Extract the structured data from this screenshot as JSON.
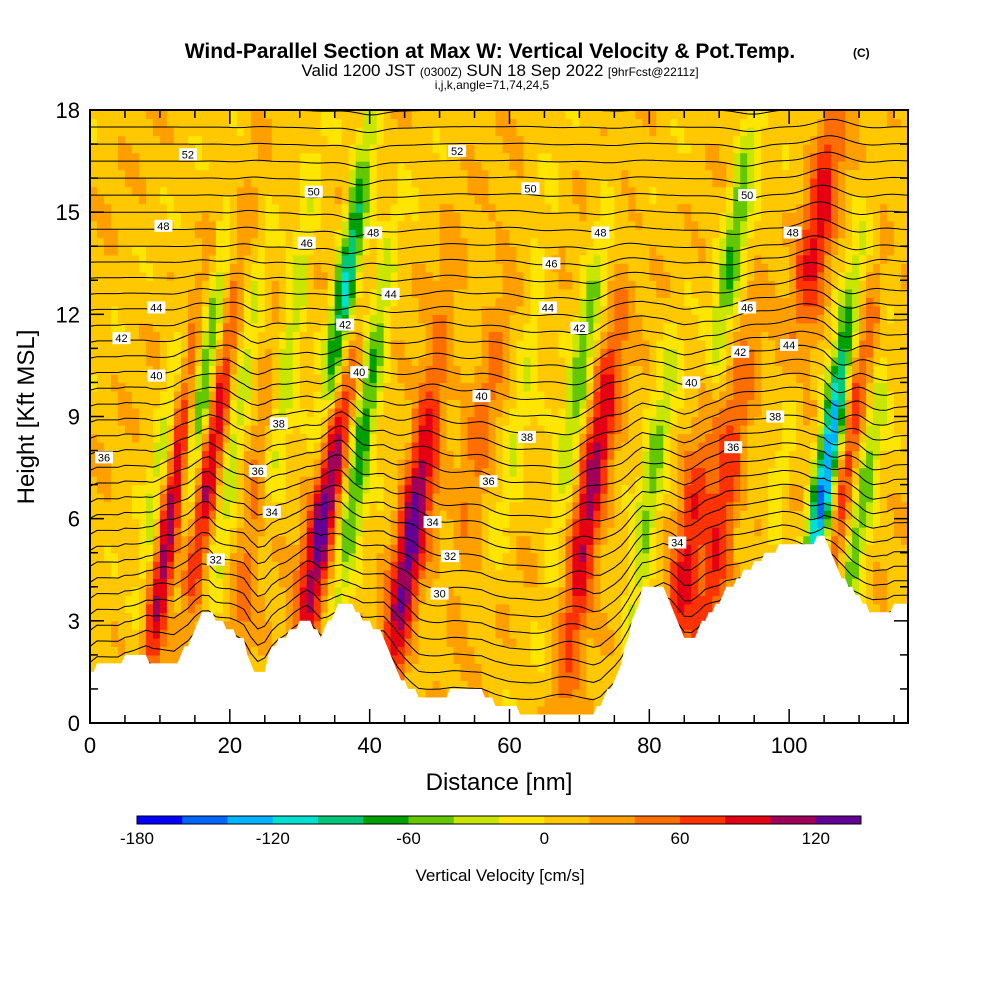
{
  "chart_data": {
    "type": "heatmap",
    "title": "Wind-Parallel Section at Max W: Vertical Velocity & Pot.Temp.",
    "title_mark": "(C)",
    "subtitle": {
      "valid_prefix": "Valid 1200 JST",
      "utc": "(0300Z)",
      "date": "SUN 18 Sep 2022",
      "forecast": "[9hrFcst@2211z]"
    },
    "indices": "i,j,k,angle=71,74,24,5",
    "xlabel": "Distance [nm]",
    "ylabel": "Height [Kft MSL]",
    "xlim": [
      0,
      117
    ],
    "ylim": [
      0,
      18
    ],
    "x_ticks": [
      "0",
      "20",
      "40",
      "60",
      "80",
      "100"
    ],
    "y_ticks": [
      "0",
      "3",
      "6",
      "9",
      "12",
      "15",
      "18"
    ],
    "colorbar": {
      "label": "Vertical Velocity [cm/s]",
      "tick_labels": [
        "-180",
        "-120",
        "-60",
        "0",
        "60",
        "120"
      ],
      "range": [
        -180,
        140
      ],
      "step": 20,
      "colors": [
        "#0000ff",
        "#0066ff",
        "#00b4ff",
        "#00e1d2",
        "#00c878",
        "#00a000",
        "#64c800",
        "#c8e600",
        "#ffe600",
        "#ffc800",
        "#ffa000",
        "#ff6e00",
        "#ff3200",
        "#e60014",
        "#a0005a",
        "#640096"
      ]
    },
    "terrain": [
      [
        0,
        1.4
      ],
      [
        1,
        1.7
      ],
      [
        4,
        1.7
      ],
      [
        5,
        1.9
      ],
      [
        8,
        1.9
      ],
      [
        9,
        1.7
      ],
      [
        12,
        1.7
      ],
      [
        13,
        2.0
      ],
      [
        14,
        2.3
      ],
      [
        15,
        2.8
      ],
      [
        16,
        3.2
      ],
      [
        17,
        3.3
      ],
      [
        18,
        3.0
      ],
      [
        19,
        2.9
      ],
      [
        20,
        2.8
      ],
      [
        21,
        2.6
      ],
      [
        22,
        2.4
      ],
      [
        23,
        1.8
      ],
      [
        24,
        1.4
      ],
      [
        25,
        1.6
      ],
      [
        26,
        2.2
      ],
      [
        27,
        2.5
      ],
      [
        28,
        2.6
      ],
      [
        29,
        2.8
      ],
      [
        30,
        2.9
      ],
      [
        31,
        3.0
      ],
      [
        32,
        2.8
      ],
      [
        33,
        2.6
      ],
      [
        34,
        2.9
      ],
      [
        35,
        3.3
      ],
      [
        36,
        3.6
      ],
      [
        37,
        3.5
      ],
      [
        38,
        3.3
      ],
      [
        39,
        3.0
      ],
      [
        40,
        2.9
      ],
      [
        41,
        2.8
      ],
      [
        42,
        2.6
      ],
      [
        43,
        2.0
      ],
      [
        44,
        1.5
      ],
      [
        45,
        1.2
      ],
      [
        46,
        1.0
      ],
      [
        47,
        0.8
      ],
      [
        48,
        0.8
      ],
      [
        50,
        0.8
      ],
      [
        52,
        0.9
      ],
      [
        56,
        0.9
      ],
      [
        58,
        0.6
      ],
      [
        60,
        0.4
      ],
      [
        64,
        0.3
      ],
      [
        68,
        0.3
      ],
      [
        72,
        0.3
      ],
      [
        73,
        0.5
      ],
      [
        74,
        0.9
      ],
      [
        75,
        1.3
      ],
      [
        76,
        1.8
      ],
      [
        77,
        2.5
      ],
      [
        78,
        3.3
      ],
      [
        79,
        3.9
      ],
      [
        82,
        3.9
      ],
      [
        83,
        3.5
      ],
      [
        84,
        2.9
      ],
      [
        85,
        2.4
      ],
      [
        86,
        2.4
      ],
      [
        87,
        2.7
      ],
      [
        88,
        3.1
      ],
      [
        90,
        3.5
      ],
      [
        91,
        3.9
      ],
      [
        93,
        4.3
      ],
      [
        95,
        4.7
      ],
      [
        97,
        5.0
      ],
      [
        99,
        5.2
      ],
      [
        103,
        5.2
      ],
      [
        104,
        5.4
      ],
      [
        105,
        5.5
      ],
      [
        106,
        5.0
      ],
      [
        107,
        4.5
      ],
      [
        108,
        4.2
      ],
      [
        109,
        3.9
      ],
      [
        110,
        3.7
      ],
      [
        111,
        3.4
      ],
      [
        112,
        3.2
      ],
      [
        114,
        3.2
      ],
      [
        115,
        3.4
      ],
      [
        117,
        3.4
      ]
    ],
    "updrafts": [
      {
        "x": 12,
        "y": 6.5,
        "amp": 135
      },
      {
        "x": 17.5,
        "y": 8.0,
        "amp": 95
      },
      {
        "x": 24,
        "y": 6.5,
        "amp": 50
      },
      {
        "x": 33.5,
        "y": 6.5,
        "amp": 130
      },
      {
        "x": 46,
        "y": 5.5,
        "amp": 115
      },
      {
        "x": 56,
        "y": 8.5,
        "amp": 35
      },
      {
        "x": 71.5,
        "y": 6.5,
        "amp": 100
      },
      {
        "x": 85,
        "y": 4.3,
        "amp": 80
      },
      {
        "x": 90,
        "y": 5.5,
        "amp": 70
      },
      {
        "x": 103,
        "y": 13.0,
        "amp": 110
      },
      {
        "x": 108,
        "y": 7.5,
        "amp": 75
      }
    ],
    "downdrafts": [
      {
        "x": 10,
        "y": 7.0,
        "amp": 60
      },
      {
        "x": 15.5,
        "y": 9.0,
        "amp": 130
      },
      {
        "x": 20.5,
        "y": 8.5,
        "amp": 65
      },
      {
        "x": 28,
        "y": 10.5,
        "amp": 70
      },
      {
        "x": 36.5,
        "y": 12.5,
        "amp": 135
      },
      {
        "x": 39,
        "y": 8.5,
        "amp": 90
      },
      {
        "x": 62,
        "y": 10.0,
        "amp": 30
      },
      {
        "x": 70,
        "y": 10.0,
        "amp": 65
      },
      {
        "x": 80,
        "y": 6.5,
        "amp": 60
      },
      {
        "x": 92,
        "y": 14.0,
        "amp": 75
      },
      {
        "x": 100.5,
        "y": 9.5,
        "amp": 80
      },
      {
        "x": 105.5,
        "y": 7.5,
        "amp": 180
      },
      {
        "x": 110,
        "y": 6.0,
        "amp": 70
      }
    ],
    "theta_levels": [
      30,
      32,
      34,
      36,
      38,
      40,
      42,
      44,
      46,
      48,
      50,
      52
    ],
    "theta_labels": [
      {
        "x": 14.0,
        "y": 16.7,
        "value": "52"
      },
      {
        "x": 52.5,
        "y": 16.8,
        "value": "52"
      },
      {
        "x": 32.0,
        "y": 15.6,
        "value": "50"
      },
      {
        "x": 63.0,
        "y": 15.7,
        "value": "50"
      },
      {
        "x": 94.0,
        "y": 15.5,
        "value": "50"
      },
      {
        "x": 10.5,
        "y": 14.6,
        "value": "48"
      },
      {
        "x": 40.5,
        "y": 14.4,
        "value": "48"
      },
      {
        "x": 73.0,
        "y": 14.4,
        "value": "48"
      },
      {
        "x": 100.5,
        "y": 14.4,
        "value": "48"
      },
      {
        "x": 31.0,
        "y": 14.1,
        "value": "46"
      },
      {
        "x": 66.0,
        "y": 13.5,
        "value": "46"
      },
      {
        "x": 94.0,
        "y": 12.2,
        "value": "46"
      },
      {
        "x": 9.5,
        "y": 12.2,
        "value": "44"
      },
      {
        "x": 43.0,
        "y": 12.6,
        "value": "44"
      },
      {
        "x": 65.5,
        "y": 12.2,
        "value": "44"
      },
      {
        "x": 100.0,
        "y": 11.1,
        "value": "44"
      },
      {
        "x": 4.5,
        "y": 11.3,
        "value": "42"
      },
      {
        "x": 36.5,
        "y": 11.7,
        "value": "42"
      },
      {
        "x": 70.0,
        "y": 11.6,
        "value": "42"
      },
      {
        "x": 93.0,
        "y": 10.9,
        "value": "42"
      },
      {
        "x": 9.5,
        "y": 10.2,
        "value": "40"
      },
      {
        "x": 38.5,
        "y": 10.3,
        "value": "40"
      },
      {
        "x": 56.0,
        "y": 9.6,
        "value": "40"
      },
      {
        "x": 86.0,
        "y": 10.0,
        "value": "40"
      },
      {
        "x": 27.0,
        "y": 8.8,
        "value": "38"
      },
      {
        "x": 62.5,
        "y": 8.4,
        "value": "38"
      },
      {
        "x": 98.0,
        "y": 9.0,
        "value": "38"
      },
      {
        "x": 2.0,
        "y": 7.8,
        "value": "36"
      },
      {
        "x": 24.0,
        "y": 7.4,
        "value": "36"
      },
      {
        "x": 57.0,
        "y": 7.1,
        "value": "36"
      },
      {
        "x": 92.0,
        "y": 8.1,
        "value": "36"
      },
      {
        "x": 26.0,
        "y": 6.2,
        "value": "34"
      },
      {
        "x": 49.0,
        "y": 5.9,
        "value": "34"
      },
      {
        "x": 84.0,
        "y": 5.3,
        "value": "34"
      },
      {
        "x": 18.0,
        "y": 4.8,
        "value": "32"
      },
      {
        "x": 51.5,
        "y": 4.9,
        "value": "32"
      },
      {
        "x": 50.0,
        "y": 3.8,
        "value": "30"
      }
    ]
  }
}
